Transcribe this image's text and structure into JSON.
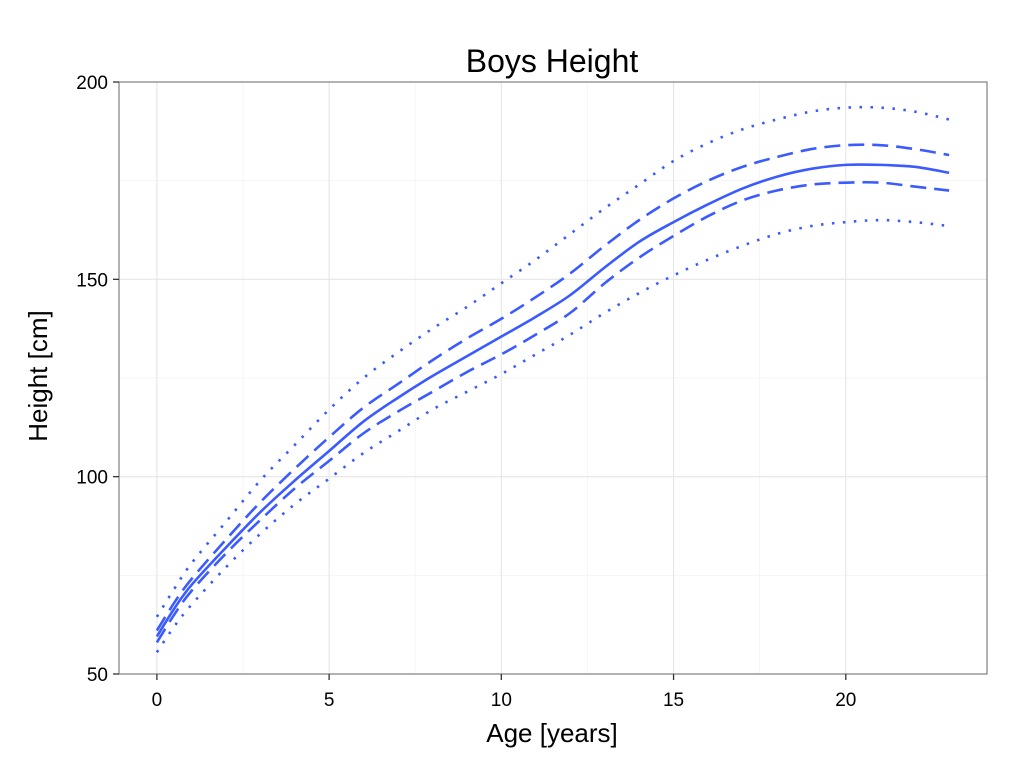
{
  "chart_data": {
    "type": "line",
    "title": "Boys Height",
    "xlabel": "Age [years]",
    "ylabel": "Height [cm]",
    "xlim": [
      -1.1,
      24.1
    ],
    "ylim": [
      50,
      200
    ],
    "xticks": [
      0,
      5,
      10,
      15,
      20
    ],
    "yticks": [
      50,
      100,
      150,
      200
    ],
    "grid": true,
    "line_color": "#3b5bff",
    "x": [
      0,
      0.5,
      1,
      2,
      3,
      4,
      5,
      6,
      7,
      8,
      9,
      10,
      11,
      12,
      13,
      14,
      15,
      16,
      17,
      18,
      19,
      20,
      21,
      22,
      23
    ],
    "series": [
      {
        "style": "dotted",
        "values": [
          55.5,
          62,
          67.5,
          77,
          85.5,
          93,
          99.5,
          106,
          111.5,
          117,
          121.5,
          126,
          131,
          136,
          141.5,
          146.5,
          151,
          155,
          158.5,
          161.5,
          163.5,
          164.5,
          165,
          164.5,
          163.5
        ]
      },
      {
        "style": "dashed",
        "values": [
          58,
          65,
          71,
          80.5,
          89,
          97,
          104,
          111,
          116.5,
          121.5,
          126.5,
          131,
          136,
          141.5,
          149,
          155.5,
          161,
          166,
          170,
          172.5,
          174,
          174.5,
          174.5,
          173.5,
          172.5
        ]
      },
      {
        "style": "solid",
        "values": [
          59.5,
          66.5,
          72.5,
          82,
          91,
          99,
          106.5,
          114,
          120,
          125.5,
          130.5,
          135.5,
          140.5,
          146,
          153,
          159.5,
          164.5,
          169,
          173,
          176,
          178,
          179,
          179,
          178.5,
          177
        ]
      },
      {
        "style": "dashed",
        "values": [
          61,
          68,
          74,
          84,
          93.5,
          102,
          110,
          117.5,
          123.5,
          129.5,
          135,
          140,
          145.5,
          151.5,
          158.5,
          165,
          170.5,
          175,
          178.5,
          181,
          183,
          184,
          184,
          183,
          181.5
        ]
      },
      {
        "style": "dotted",
        "values": [
          64.5,
          71.5,
          78,
          88.5,
          99,
          108,
          117,
          125,
          131.5,
          137.5,
          143,
          149,
          155,
          161.5,
          168,
          174,
          180,
          184.5,
          188,
          190.5,
          192.5,
          193.5,
          193.5,
          192.5,
          190.5
        ]
      }
    ]
  }
}
